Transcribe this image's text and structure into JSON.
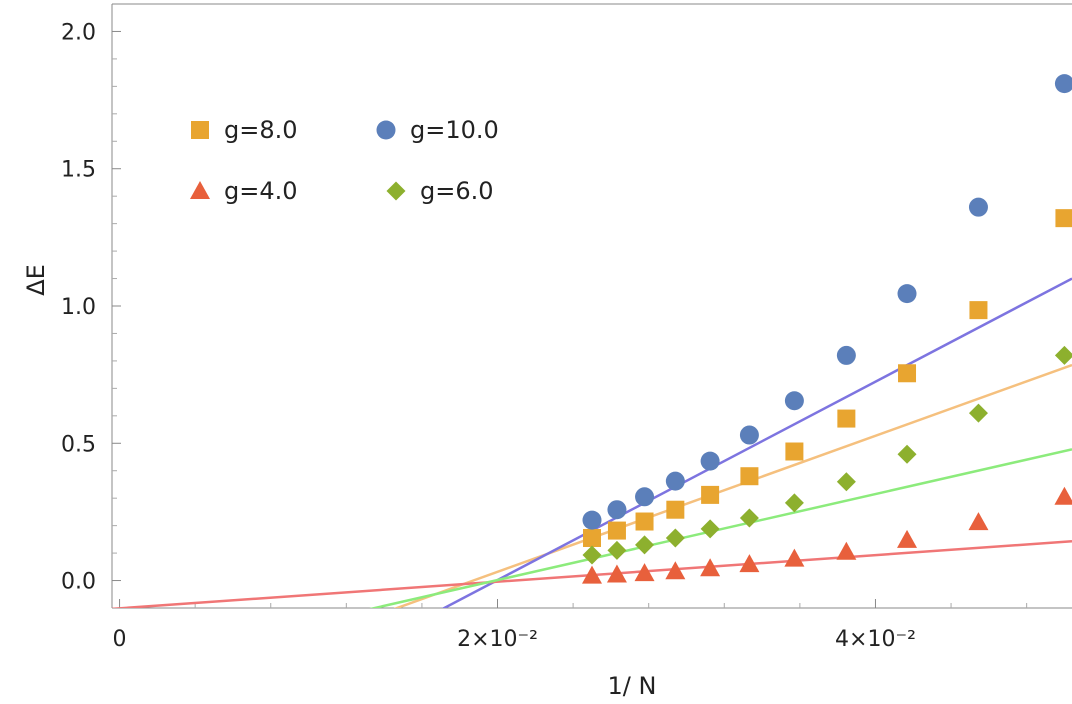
{
  "chart_data": {
    "type": "scatter",
    "title": "",
    "xlabel": "1/ N",
    "ylabel": "ΔE",
    "xlim": [
      -0.0004,
      0.0504
    ],
    "ylim": [
      -0.1,
      2.1
    ],
    "x_ticks": [
      {
        "value": 0,
        "label": "0"
      },
      {
        "value": 0.02,
        "label": "2×10⁻²"
      },
      {
        "value": 0.04,
        "label": "4×10⁻²"
      }
    ],
    "y_ticks": [
      {
        "value": 0.0,
        "label": "0.0"
      },
      {
        "value": 0.5,
        "label": "0.5"
      },
      {
        "value": 1.0,
        "label": "1.0"
      },
      {
        "value": 1.5,
        "label": "1.5"
      },
      {
        "value": 2.0,
        "label": "2.0"
      }
    ],
    "legend_position": "top-left",
    "series": [
      {
        "name": "g=8.0",
        "marker": "square",
        "color": "#E8A530",
        "points": [
          [
            0.025,
            0.155
          ],
          [
            0.02632,
            0.182
          ],
          [
            0.02778,
            0.215
          ],
          [
            0.02941,
            0.258
          ],
          [
            0.03125,
            0.312
          ],
          [
            0.03333,
            0.38
          ],
          [
            0.03571,
            0.47
          ],
          [
            0.03846,
            0.59
          ],
          [
            0.04167,
            0.755
          ],
          [
            0.04545,
            0.985
          ],
          [
            0.05,
            1.32
          ]
        ],
        "fit": {
          "color": "#F5C07E",
          "x": [
            0.014,
            0.0504
          ],
          "y": [
            -0.117,
            0.785
          ]
        }
      },
      {
        "name": "g=10.0",
        "marker": "circle",
        "color": "#5B7FBA",
        "points": [
          [
            0.025,
            0.22
          ],
          [
            0.02632,
            0.258
          ],
          [
            0.02778,
            0.305
          ],
          [
            0.02941,
            0.362
          ],
          [
            0.03125,
            0.435
          ],
          [
            0.03333,
            0.53
          ],
          [
            0.03571,
            0.655
          ],
          [
            0.03846,
            0.82
          ],
          [
            0.04167,
            1.045
          ],
          [
            0.04545,
            1.36
          ],
          [
            0.05,
            1.81
          ]
        ],
        "fit": {
          "color": "#7D74E0",
          "x": [
            0.0158,
            0.0504
          ],
          "y": [
            -0.15,
            1.1
          ]
        }
      },
      {
        "name": "g=4.0",
        "marker": "triangle",
        "color": "#E8603C",
        "points": [
          [
            0.025,
            0.018
          ],
          [
            0.02632,
            0.022
          ],
          [
            0.02778,
            0.027
          ],
          [
            0.02941,
            0.034
          ],
          [
            0.03125,
            0.045
          ],
          [
            0.03333,
            0.06
          ],
          [
            0.03571,
            0.08
          ],
          [
            0.03846,
            0.105
          ],
          [
            0.04167,
            0.148
          ],
          [
            0.04545,
            0.213
          ],
          [
            0.05,
            0.305
          ]
        ],
        "fit": {
          "color": "#F07676",
          "x": [
            -0.0004,
            0.0504
          ],
          "y": [
            -0.103,
            0.143
          ]
        }
      },
      {
        "name": "g=6.0",
        "marker": "diamond",
        "color": "#8DB02E",
        "points": [
          [
            0.025,
            0.093
          ],
          [
            0.02632,
            0.11
          ],
          [
            0.02778,
            0.13
          ],
          [
            0.02941,
            0.155
          ],
          [
            0.03125,
            0.188
          ],
          [
            0.03333,
            0.228
          ],
          [
            0.03571,
            0.283
          ],
          [
            0.03846,
            0.36
          ],
          [
            0.04167,
            0.46
          ],
          [
            0.04545,
            0.61
          ],
          [
            0.05,
            0.82
          ]
        ],
        "fit": {
          "color": "#8CEB7C",
          "x": [
            0.0114,
            0.0504
          ],
          "y": [
            -0.133,
            0.478
          ]
        }
      }
    ]
  }
}
